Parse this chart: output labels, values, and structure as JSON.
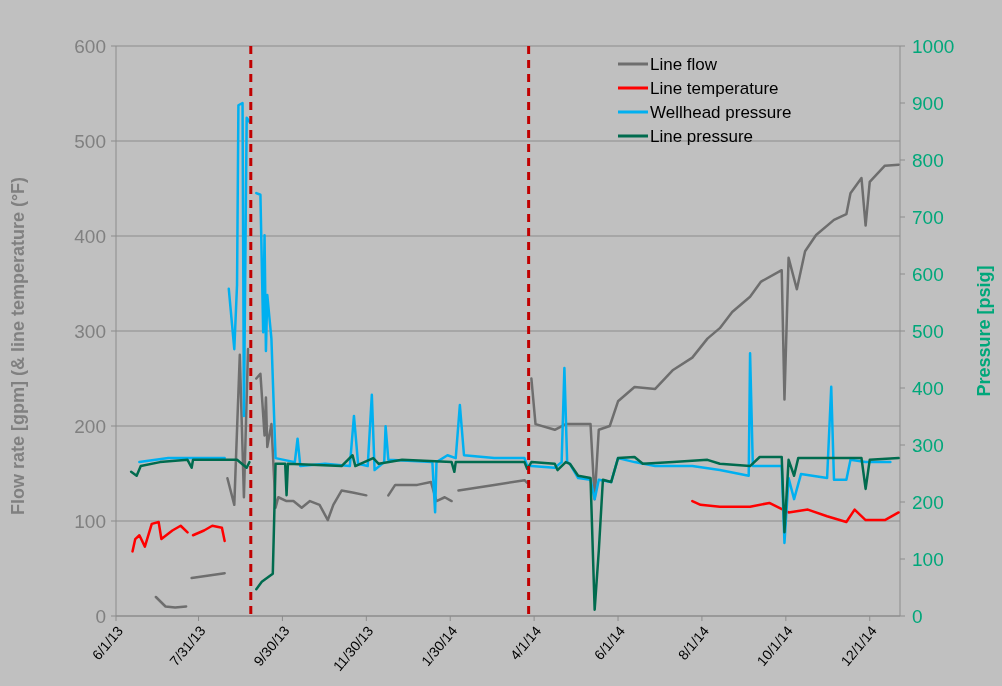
{
  "chart_data": {
    "type": "line",
    "xlabel": null,
    "ylabel": "Flow rate [gpm] (& line temperature (°F)",
    "y2label": "Pressure [psig]",
    "xlim": [
      "2013-06-01",
      "2014-12-23"
    ],
    "xticks": [
      {
        "value": "2013-06-01",
        "label": "6/1/13"
      },
      {
        "value": "2013-07-31",
        "label": "7/31/13"
      },
      {
        "value": "2013-09-30",
        "label": "9/30/13"
      },
      {
        "value": "2013-11-30",
        "label": "11/30/13"
      },
      {
        "value": "2014-01-30",
        "label": "1/30/14"
      },
      {
        "value": "2014-04-01",
        "label": "4/1/14"
      },
      {
        "value": "2014-06-01",
        "label": "6/1/14"
      },
      {
        "value": "2014-08-01",
        "label": "8/1/14"
      },
      {
        "value": "2014-10-01",
        "label": "10/1/14"
      },
      {
        "value": "2014-12-01",
        "label": "12/1/14"
      }
    ],
    "ylim": [
      0,
      600
    ],
    "yticks": [
      0,
      100,
      200,
      300,
      400,
      500,
      600
    ],
    "y2lim": [
      0,
      1000
    ],
    "y2ticks": [
      0,
      100,
      200,
      300,
      400,
      500,
      600,
      700,
      800,
      900,
      1000
    ],
    "grid": "y",
    "legend": "top right",
    "line_style": "solid",
    "marker": "none",
    "ref_lines": [
      {
        "axis": "x",
        "value": "2013-09-07",
        "color": "#c00000",
        "line_style": "dashed"
      },
      {
        "axis": "x",
        "value": "2014-03-28",
        "color": "#c00000",
        "line_style": "dashed"
      }
    ],
    "series": [
      {
        "name": "Line flow",
        "color": "#6e6e6e",
        "x": [
          "2013-06-30",
          "2013-07-07",
          "2013-07-14",
          "2013-07-22",
          "2013-07-24",
          "2013-07-26",
          "2013-08-19",
          "2013-08-20",
          "2013-08-21",
          "2013-08-26",
          "2013-08-30",
          "2013-09-02",
          "2013-09-05",
          "2013-09-08",
          "2013-09-11",
          "2013-09-14",
          "2013-09-17",
          "2013-09-18",
          "2013-09-19",
          "2013-09-22",
          "2013-09-25",
          "2013-09-27",
          "2013-10-03",
          "2013-10-08",
          "2013-10-14",
          "2013-10-20",
          "2013-10-27",
          "2013-11-02",
          "2013-11-06",
          "2013-11-12",
          "2013-11-20",
          "2013-11-30",
          "2013-12-08",
          "2013-12-16",
          "2013-12-21",
          "2014-01-06",
          "2014-01-16",
          "2014-01-20",
          "2014-01-26",
          "2014-01-31",
          "2014-02-03",
          "2014-02-05",
          "2014-03-03",
          "2014-03-25",
          "2014-03-27",
          "2014-03-29",
          "2014-03-30",
          "2014-04-02",
          "2014-04-16",
          "2014-04-24",
          "2014-05-12",
          "2014-05-15",
          "2014-05-18",
          "2014-05-26",
          "2014-06-01",
          "2014-06-13",
          "2014-06-28",
          "2014-07-11",
          "2014-07-25",
          "2014-08-05",
          "2014-08-14",
          "2014-08-23",
          "2014-09-05",
          "2014-09-13",
          "2014-09-28",
          "2014-09-30",
          "2014-10-03",
          "2014-10-09",
          "2014-10-15",
          "2014-10-23",
          "2014-11-05",
          "2014-11-14",
          "2014-11-17",
          "2014-11-25",
          "2014-11-28",
          "2014-12-01",
          "2014-12-12",
          "2014-12-22"
        ],
        "values": [
          20,
          10,
          9,
          10,
          null,
          40,
          45,
          null,
          145,
          117,
          275,
          125,
          281,
          null,
          250,
          255,
          190,
          230,
          178,
          202,
          114,
          125,
          121,
          121,
          114,
          121,
          117,
          101,
          117,
          132,
          130,
          127,
          null,
          127,
          138,
          138,
          141,
          121,
          125,
          121,
          null,
          132,
          138,
          143,
          140,
          null,
          250,
          202,
          196,
          202,
          202,
          123,
          196,
          200,
          226,
          241,
          239,
          259,
          272,
          292,
          303,
          320,
          336,
          352,
          364,
          228,
          377,
          344,
          384,
          401,
          417,
          423,
          445,
          461,
          411,
          457,
          474,
          475
        ]
      },
      {
        "name": "Line temperature",
        "color": "#ff0000",
        "x": [
          "2013-06-13",
          "2013-06-15",
          "2013-06-18",
          "2013-06-22",
          "2013-06-27",
          "2013-07-02",
          "2013-07-04",
          "2013-07-12",
          "2013-07-18",
          "2013-07-23",
          "2013-07-25",
          "2013-07-27",
          "2013-08-04",
          "2013-08-10",
          "2013-08-17",
          "2013-08-19",
          "2014-01-01",
          "2014-07-25",
          "2014-07-31",
          "2014-08-14",
          "2014-09-05",
          "2014-09-19",
          "2014-10-03",
          "2014-10-17",
          "2014-10-31",
          "2014-11-14",
          "2014-11-20",
          "2014-11-28",
          "2014-12-12",
          "2014-12-22"
        ],
        "values": [
          68,
          81,
          85,
          73,
          97,
          99,
          81,
          90,
          95,
          88,
          null,
          85,
          90,
          95,
          93,
          79,
          null,
          121,
          117,
          115,
          115,
          119,
          109,
          112,
          105,
          99,
          112,
          101,
          101,
          109
        ]
      },
      {
        "name": "Wellhead pressure",
        "color": "#00b0f0",
        "axis": "y2",
        "x": [
          "2013-06-18",
          "2013-07-09",
          "2013-08-19",
          "2013-08-20",
          "2013-08-22",
          "2013-08-26",
          "2013-08-28",
          "2013-08-29",
          "2013-09-01",
          "2013-09-02",
          "2013-09-04",
          "2013-09-06",
          "2013-09-08",
          "2013-09-11",
          "2013-09-14",
          "2013-09-16",
          "2013-09-17",
          "2013-09-18",
          "2013-09-19",
          "2013-09-22",
          "2013-09-25",
          "2013-10-09",
          "2013-10-11",
          "2013-10-13",
          "2013-10-31",
          "2013-11-18",
          "2013-11-21",
          "2013-11-24",
          "2013-12-01",
          "2013-12-04",
          "2013-12-06",
          "2013-12-13",
          "2013-12-14",
          "2013-12-16",
          "2014-01-17",
          "2014-01-19",
          "2014-01-20",
          "2014-01-28",
          "2014-02-03",
          "2014-02-06",
          "2014-02-09",
          "2014-03-03",
          "2014-03-25",
          "2014-03-27",
          "2014-03-30",
          "2014-04-16",
          "2014-04-21",
          "2014-04-23",
          "2014-04-25",
          "2014-04-27",
          "2014-05-03",
          "2014-05-12",
          "2014-05-15",
          "2014-05-18",
          "2014-05-27",
          "2014-06-01",
          "2014-06-13",
          "2014-06-28",
          "2014-07-25",
          "2014-08-14",
          "2014-09-04",
          "2014-09-05",
          "2014-09-07",
          "2014-09-28",
          "2014-09-30",
          "2014-10-03",
          "2014-10-07",
          "2014-10-12",
          "2014-10-31",
          "2014-11-03",
          "2014-11-05",
          "2014-11-14",
          "2014-11-17",
          "2014-11-28",
          "2014-12-16"
        ],
        "values": [
          270,
          277,
          277,
          null,
          574,
          468,
          581,
          896,
          900,
          351,
          874,
          867,
          null,
          742,
          739,
          498,
          668,
          465,
          563,
          486,
          277,
          270,
          311,
          263,
          267,
          263,
          351,
          267,
          263,
          388,
          256,
          270,
          333,
          274,
          270,
          182,
          270,
          282,
          277,
          370,
          282,
          277,
          277,
          263,
          263,
          260,
          270,
          435,
          270,
          267,
          242,
          239,
          205,
          239,
          235,
          277,
          270,
          263,
          263,
          256,
          246,
          461,
          263,
          263,
          128,
          242,
          205,
          249,
          242,
          402,
          239,
          239,
          274,
          270,
          270
        ]
      },
      {
        "name": "Line pressure",
        "color": "#006b4e",
        "axis": "y2",
        "x": [
          "2013-06-12",
          "2013-06-16",
          "2013-06-19",
          "2013-07-03",
          "2013-07-23",
          "2013-07-26",
          "2013-07-27",
          "2013-08-19",
          "2013-08-28",
          "2013-09-04",
          "2013-09-06",
          "2013-09-08",
          "2013-09-11",
          "2013-09-15",
          "2013-09-23",
          "2013-09-25",
          "2013-10-02",
          "2013-10-03",
          "2013-10-04",
          "2013-11-12",
          "2013-11-20",
          "2013-11-22",
          "2013-12-05",
          "2013-12-09",
          "2013-12-26",
          "2014-01-31",
          "2014-02-02",
          "2014-02-03",
          "2014-03-25",
          "2014-03-27",
          "2014-03-30",
          "2014-04-16",
          "2014-04-18",
          "2014-04-24",
          "2014-04-27",
          "2014-05-03",
          "2014-05-12",
          "2014-05-15",
          "2014-05-18",
          "2014-05-21",
          "2014-05-27",
          "2014-06-01",
          "2014-06-13",
          "2014-06-19",
          "2014-07-11",
          "2014-08-05",
          "2014-08-14",
          "2014-09-05",
          "2014-09-12",
          "2014-09-28",
          "2014-09-30",
          "2014-10-03",
          "2014-10-07",
          "2014-10-10",
          "2014-11-25",
          "2014-11-28",
          "2014-12-01",
          "2014-12-22"
        ],
        "values": [
          253,
          246,
          263,
          270,
          274,
          260,
          274,
          274,
          274,
          260,
          270,
          null,
          47,
          60,
          74,
          267,
          267,
          212,
          267,
          263,
          282,
          263,
          277,
          267,
          274,
          270,
          253,
          270,
          270,
          258,
          270,
          267,
          256,
          270,
          267,
          246,
          242,
          11,
          114,
          239,
          235,
          277,
          279,
          267,
          270,
          274,
          267,
          263,
          279,
          279,
          147,
          274,
          246,
          277,
          277,
          223,
          274,
          277
        ]
      }
    ]
  }
}
